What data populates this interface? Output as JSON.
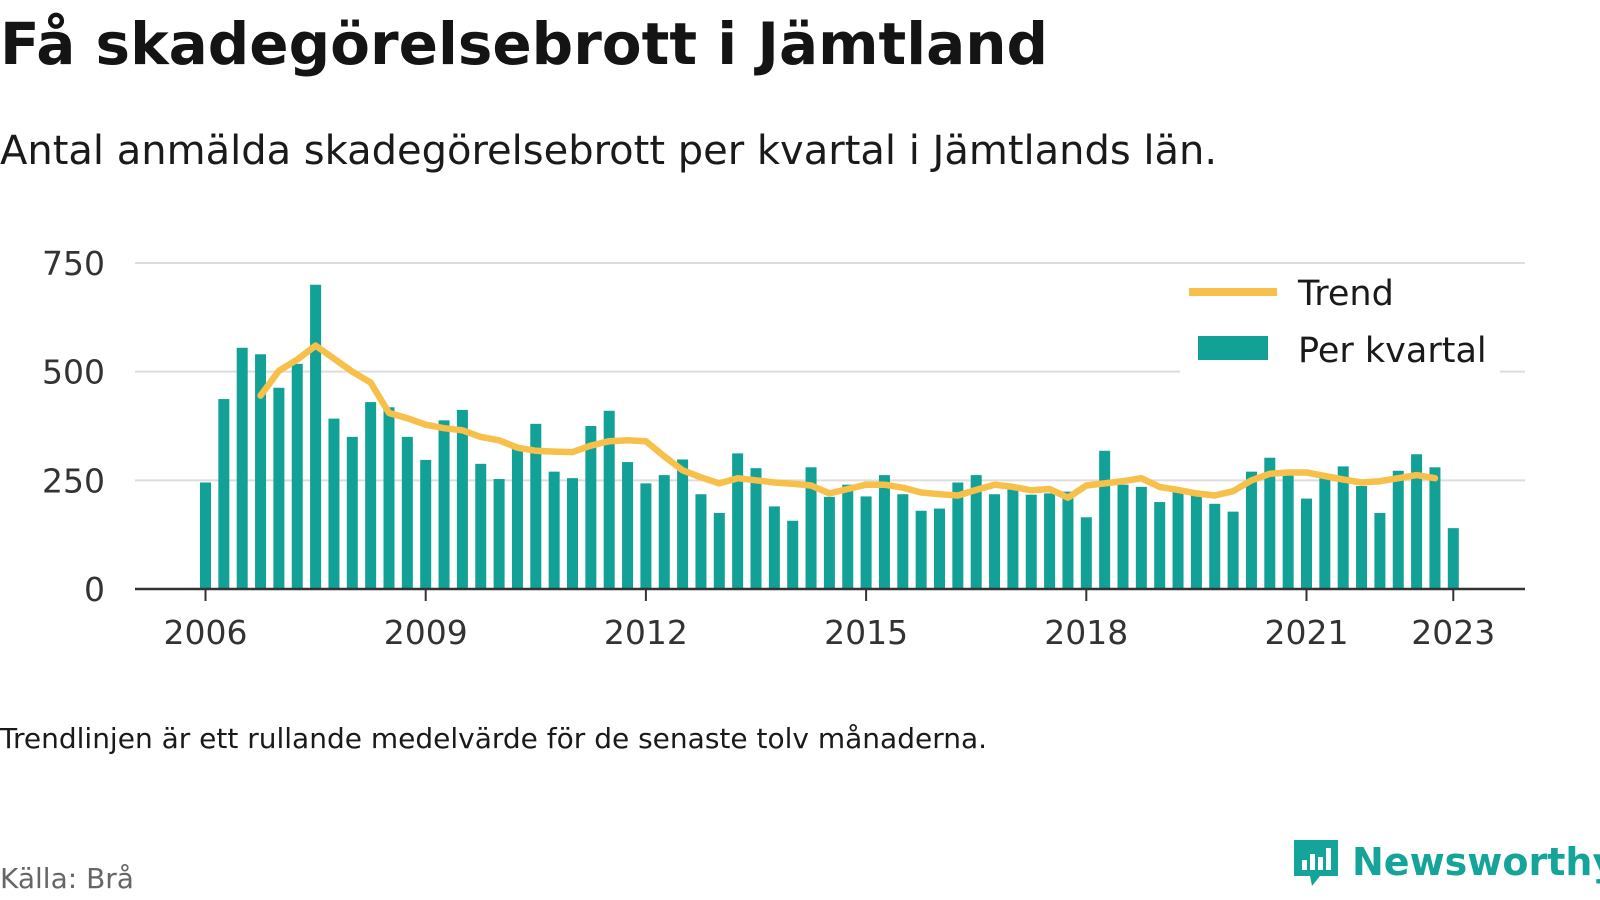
{
  "title": "Få skadegörelsebrott i Jämtland",
  "subtitle": "Antal anmälda skadegörelsebrott per kvartal i Jämtlands län.",
  "note": "Trendlinjen är ett rullande medelvärde för de senaste tolv månaderna.",
  "source": "Källa: Brå",
  "brand": "Newsworthy",
  "colors": {
    "bars": "#12a196",
    "trend": "#f7c04a",
    "grid": "#dddddd",
    "axis": "#333333",
    "brand": "#14a49a"
  },
  "chart_data": {
    "type": "bar",
    "title": "",
    "xlabel": "",
    "ylabel": "",
    "ylim": [
      0,
      750
    ],
    "yticks": [
      0,
      250,
      500,
      750
    ],
    "xticks": [
      "2006",
      "2009",
      "2012",
      "2015",
      "2018",
      "2021",
      "2023"
    ],
    "grid": true,
    "legend_position": "top-right",
    "x": [
      "2006 Q1",
      "2006 Q2",
      "2006 Q3",
      "2006 Q4",
      "2007 Q1",
      "2007 Q2",
      "2007 Q3",
      "2007 Q4",
      "2008 Q1",
      "2008 Q2",
      "2008 Q3",
      "2008 Q4",
      "2009 Q1",
      "2009 Q2",
      "2009 Q3",
      "2009 Q4",
      "2010 Q1",
      "2010 Q2",
      "2010 Q3",
      "2010 Q4",
      "2011 Q1",
      "2011 Q2",
      "2011 Q3",
      "2011 Q4",
      "2012 Q1",
      "2012 Q2",
      "2012 Q3",
      "2012 Q4",
      "2013 Q1",
      "2013 Q2",
      "2013 Q3",
      "2013 Q4",
      "2014 Q1",
      "2014 Q2",
      "2014 Q3",
      "2014 Q4",
      "2015 Q1",
      "2015 Q2",
      "2015 Q3",
      "2015 Q4",
      "2016 Q1",
      "2016 Q2",
      "2016 Q3",
      "2016 Q4",
      "2017 Q1",
      "2017 Q2",
      "2017 Q3",
      "2017 Q4",
      "2018 Q1",
      "2018 Q2",
      "2018 Q3",
      "2018 Q4",
      "2019 Q1",
      "2019 Q2",
      "2019 Q3",
      "2019 Q4",
      "2020 Q1",
      "2020 Q2",
      "2020 Q3",
      "2020 Q4",
      "2021 Q1",
      "2021 Q2",
      "2021 Q3",
      "2021 Q4",
      "2022 Q1",
      "2022 Q2",
      "2022 Q3",
      "2022 Q4",
      "2023 Q1"
    ],
    "series": [
      {
        "name": "Per kvartal",
        "type": "bar",
        "values": [
          245,
          437,
          555,
          540,
          463,
          518,
          700,
          392,
          350,
          430,
          418,
          350,
          297,
          388,
          412,
          288,
          253,
          325,
          380,
          270,
          255,
          375,
          410,
          292,
          243,
          262,
          298,
          218,
          175,
          312,
          278,
          190,
          157,
          280,
          212,
          240,
          213,
          262,
          218,
          180,
          185,
          245,
          262,
          218,
          240,
          217,
          220,
          224,
          165,
          318,
          240,
          235,
          200,
          228,
          225,
          196,
          178,
          270,
          302,
          270,
          208,
          263,
          282,
          237,
          175,
          272,
          310,
          280,
          140
        ]
      },
      {
        "name": "Trend",
        "type": "line",
        "values": [
          null,
          null,
          null,
          445,
          502,
          528,
          560,
          530,
          500,
          475,
          405,
          393,
          378,
          370,
          365,
          350,
          342,
          325,
          318,
          316,
          315,
          330,
          340,
          342,
          340,
          305,
          273,
          257,
          243,
          255,
          250,
          245,
          242,
          238,
          220,
          230,
          240,
          240,
          233,
          222,
          218,
          215,
          228,
          240,
          235,
          227,
          230,
          210,
          238,
          243,
          248,
          255,
          235,
          228,
          220,
          215,
          225,
          250,
          265,
          268,
          268,
          260,
          252,
          245,
          248,
          255,
          262,
          255,
          null
        ]
      }
    ]
  }
}
